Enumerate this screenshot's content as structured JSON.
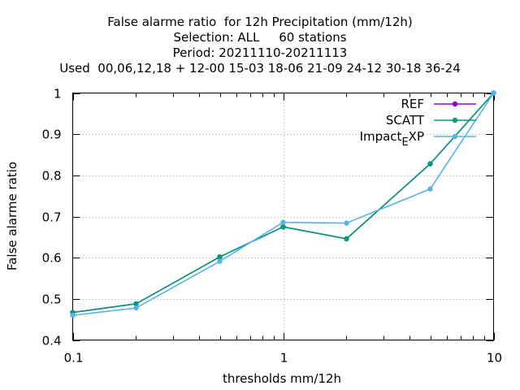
{
  "titles": [
    "False alarme ratio  for 12h Precipitation (mm/12h)",
    "Selection: ALL     60 stations",
    "Period: 20211110-20211113",
    "Used  00,06,12,18 + 12-00 15-03 18-06 21-09 24-12 30-18 36-24"
  ],
  "chart_data": {
    "type": "line",
    "xlabel": "thresholds mm/12h",
    "ylabel": "False alarme ratio",
    "xscale": "log",
    "xlim": [
      0.1,
      10
    ],
    "ylim": [
      0.4,
      1.0
    ],
    "xticks": [
      0.1,
      1,
      10
    ],
    "xtick_labels": [
      "0.1",
      "1",
      "10"
    ],
    "yticks": [
      0.4,
      0.5,
      0.6,
      0.7,
      0.8,
      0.9,
      1.0
    ],
    "ytick_labels": [
      "0.4",
      "0.5",
      "0.6",
      "0.7",
      "0.8",
      "0.9",
      "1"
    ],
    "grid": true,
    "legend_position": "top-right",
    "x": [
      0.1,
      0.2,
      0.5,
      1,
      2,
      5,
      10
    ],
    "series": [
      {
        "name": "REF",
        "legend_main": "REF",
        "legend_sub": "",
        "legend_tail": "",
        "color": "#9400d3",
        "values": [
          0.467,
          0.488,
          0.602,
          0.675,
          0.646,
          0.828,
          1.0
        ]
      },
      {
        "name": "SCATT",
        "legend_main": "SCATT",
        "legend_sub": "",
        "legend_tail": "",
        "color": "#009e73",
        "values": [
          0.467,
          0.488,
          0.602,
          0.675,
          0.646,
          0.828,
          1.0
        ]
      },
      {
        "name": "Impact_EXP",
        "legend_main": "Impact",
        "legend_sub": "E",
        "legend_tail": "XP",
        "color": "#56b4e9",
        "values": [
          0.46,
          0.478,
          0.591,
          0.686,
          0.684,
          0.767,
          1.0
        ]
      }
    ]
  }
}
